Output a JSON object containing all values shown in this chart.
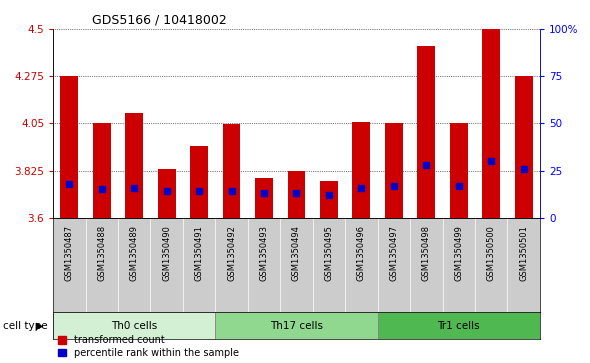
{
  "title": "GDS5166 / 10418002",
  "samples": [
    "GSM1350487",
    "GSM1350488",
    "GSM1350489",
    "GSM1350490",
    "GSM1350491",
    "GSM1350492",
    "GSM1350493",
    "GSM1350494",
    "GSM1350495",
    "GSM1350496",
    "GSM1350497",
    "GSM1350498",
    "GSM1350499",
    "GSM1350500",
    "GSM1350501"
  ],
  "transformed_count": [
    4.275,
    4.05,
    4.1,
    3.835,
    3.94,
    4.045,
    3.79,
    3.825,
    3.775,
    4.055,
    4.05,
    4.42,
    4.05,
    4.5,
    4.275
  ],
  "percentile_rank": [
    18,
    15,
    16,
    14,
    14,
    14,
    13,
    13,
    12,
    16,
    17,
    28,
    17,
    30,
    26
  ],
  "cell_types": [
    {
      "label": "Th0 cells",
      "start": 0,
      "end": 5,
      "color": "#d4f0d4"
    },
    {
      "label": "Th17 cells",
      "start": 5,
      "end": 10,
      "color": "#90d890"
    },
    {
      "label": "Tr1 cells",
      "start": 10,
      "end": 15,
      "color": "#50b850"
    }
  ],
  "ylim_left": [
    3.6,
    4.5
  ],
  "ylim_right": [
    0,
    100
  ],
  "yticks_left": [
    3.6,
    3.825,
    4.05,
    4.275,
    4.5
  ],
  "yticks_right": [
    0,
    25,
    50,
    75,
    100
  ],
  "bar_color": "#cc0000",
  "percentile_color": "#0000cc",
  "tick_bg_color": "#cccccc",
  "plot_bg_color": "#ffffff",
  "legend_labels": [
    "transformed count",
    "percentile rank within the sample"
  ],
  "cell_type_label": "cell type"
}
